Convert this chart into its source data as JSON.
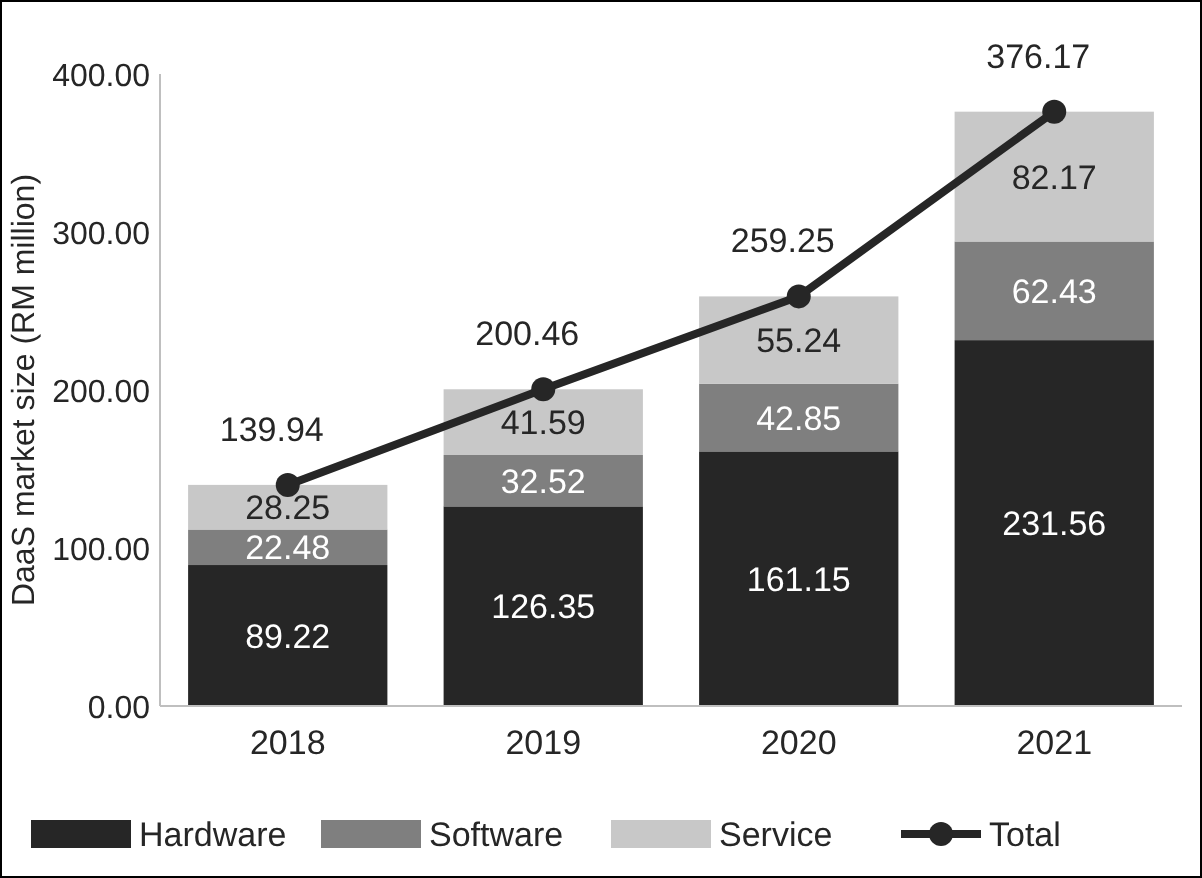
{
  "chart_data": {
    "type": "bar",
    "stacked": true,
    "ylabel": "DaaS market size (RM million)",
    "categories": [
      "2018",
      "2019",
      "2020",
      "2021"
    ],
    "series": [
      {
        "name": "Hardware",
        "color": "#262626",
        "values": [
          89.22,
          126.35,
          161.15,
          231.56
        ]
      },
      {
        "name": "Software",
        "color": "#7f7f7f",
        "values": [
          22.48,
          32.52,
          42.85,
          62.43
        ]
      },
      {
        "name": "Service",
        "color": "#c8c8c8",
        "values": [
          28.25,
          41.59,
          55.24,
          82.17
        ]
      },
      {
        "name": "Total",
        "type": "line",
        "color": "#262626",
        "marker": "circle",
        "values": [
          139.94,
          200.46,
          259.25,
          376.17
        ]
      }
    ],
    "ylim": [
      0,
      400
    ],
    "yticks": [
      {
        "value": 0,
        "label": "0.00"
      },
      {
        "value": 100,
        "label": "100.00"
      },
      {
        "value": 200,
        "label": "200.00"
      },
      {
        "value": 300,
        "label": "300.00"
      },
      {
        "value": 400,
        "label": "400.00"
      }
    ],
    "data_labels": true,
    "legend": "bottom",
    "grid": false
  }
}
